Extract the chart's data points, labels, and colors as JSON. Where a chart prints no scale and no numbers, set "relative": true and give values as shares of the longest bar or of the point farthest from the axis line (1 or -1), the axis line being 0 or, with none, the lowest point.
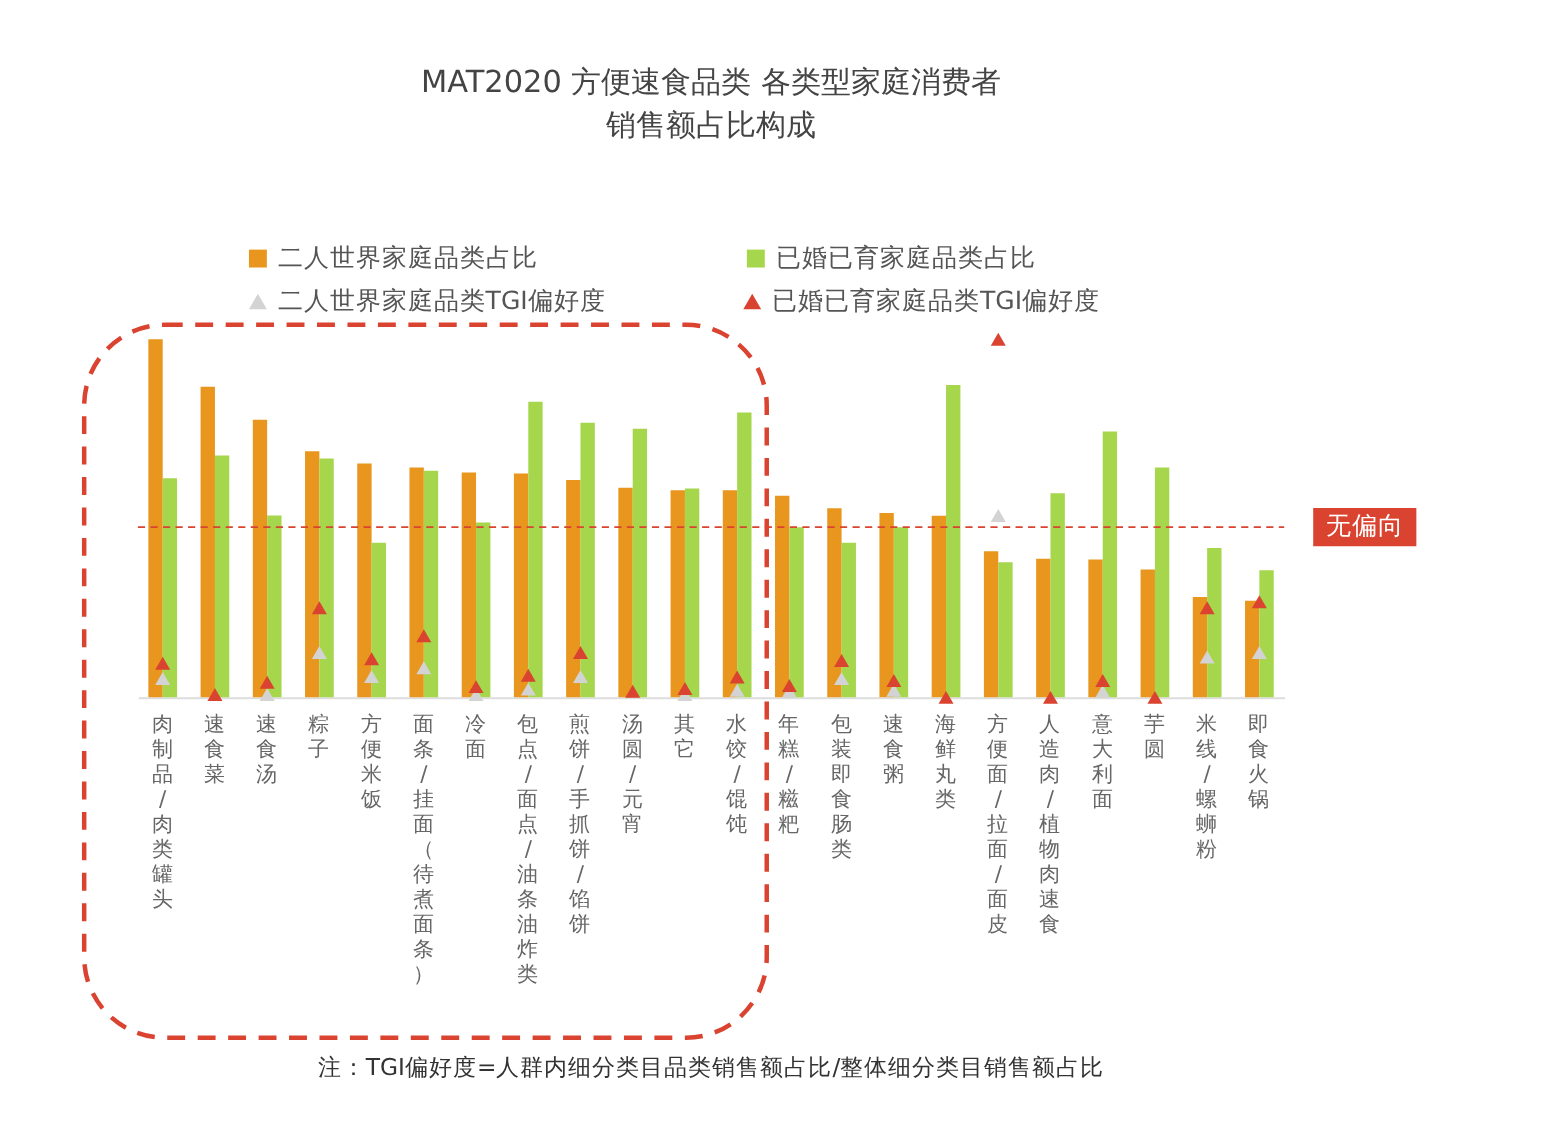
{
  "chart_data": {
    "type": "bar",
    "title": "MAT2020 方便速食品类 各类型家庭消费者销售额占比构成",
    "relative": true,
    "legend": "top",
    "grid": false,
    "marker": "triangle",
    "categories": [
      "肉制品/肉类罐头",
      "速食菜",
      "速食汤",
      "粽子",
      "方便米饭",
      "面条/挂面（待煮面条）",
      "冷面",
      "包点/面点/油条油炸类",
      "煎饼/手抓饼/馅饼",
      "汤圆/元宵",
      "其它",
      "水饺/馄饨",
      "年糕/糍粑",
      "包装即食肠类",
      "速食粥",
      "海鲜丸类",
      "方便面/拉面/面皮",
      "人造肉/植物肉速食",
      "意大利面",
      "芋圆",
      "米线/螺蛳粉",
      "即食火锅"
    ],
    "series": [
      {
        "name": "二人世界家庭品类占比",
        "type": "bar",
        "color": "#e8961e",
        "values": [
          1.0,
          0.867,
          0.775,
          0.687,
          0.653,
          0.642,
          0.628,
          0.625,
          0.607,
          0.585,
          0.578,
          0.578,
          0.563,
          0.528,
          0.515,
          0.507,
          0.408,
          0.387,
          0.385,
          0.357,
          0.28,
          0.27
        ]
      },
      {
        "name": "已婚已育家庭品类占比",
        "type": "bar",
        "color": "#a5d64c",
        "values": [
          0.612,
          0.675,
          0.508,
          0.667,
          0.432,
          0.633,
          0.488,
          0.825,
          0.767,
          0.75,
          0.583,
          0.795,
          0.475,
          0.432,
          0.475,
          0.872,
          0.377,
          0.57,
          0.742,
          0.642,
          0.417,
          0.355
        ]
      },
      {
        "name": "二人世界家庭品类TGI偏好度",
        "type": "scatter",
        "color": "#d3d3d3",
        "values": [
          0.053,
          null,
          0.008,
          0.125,
          0.058,
          0.083,
          0.008,
          0.023,
          0.058,
          null,
          0.008,
          0.02,
          0.017,
          0.053,
          0.02,
          null,
          0.508,
          null,
          0.017,
          null,
          0.113,
          0.125
        ]
      },
      {
        "name": "已婚已育家庭品类TGI偏好度",
        "type": "scatter",
        "color": "#d9432f",
        "values": [
          0.095,
          0.008,
          0.042,
          0.25,
          0.108,
          0.172,
          0.03,
          0.062,
          0.125,
          0.017,
          0.025,
          0.057,
          0.033,
          0.103,
          0.047,
          0.0,
          1.0,
          0.0,
          0.047,
          0.0,
          0.25,
          0.267
        ]
      }
    ],
    "ref_lines": [
      {
        "axis": "y",
        "value": 0.475,
        "label": "无偏向",
        "color": "#d9432f",
        "line_style": "dashed"
      }
    ],
    "annotations": [
      "注：TGI偏好度=人群内细分类目品类销售额占比/整体细分类目销售额占比"
    ]
  }
}
